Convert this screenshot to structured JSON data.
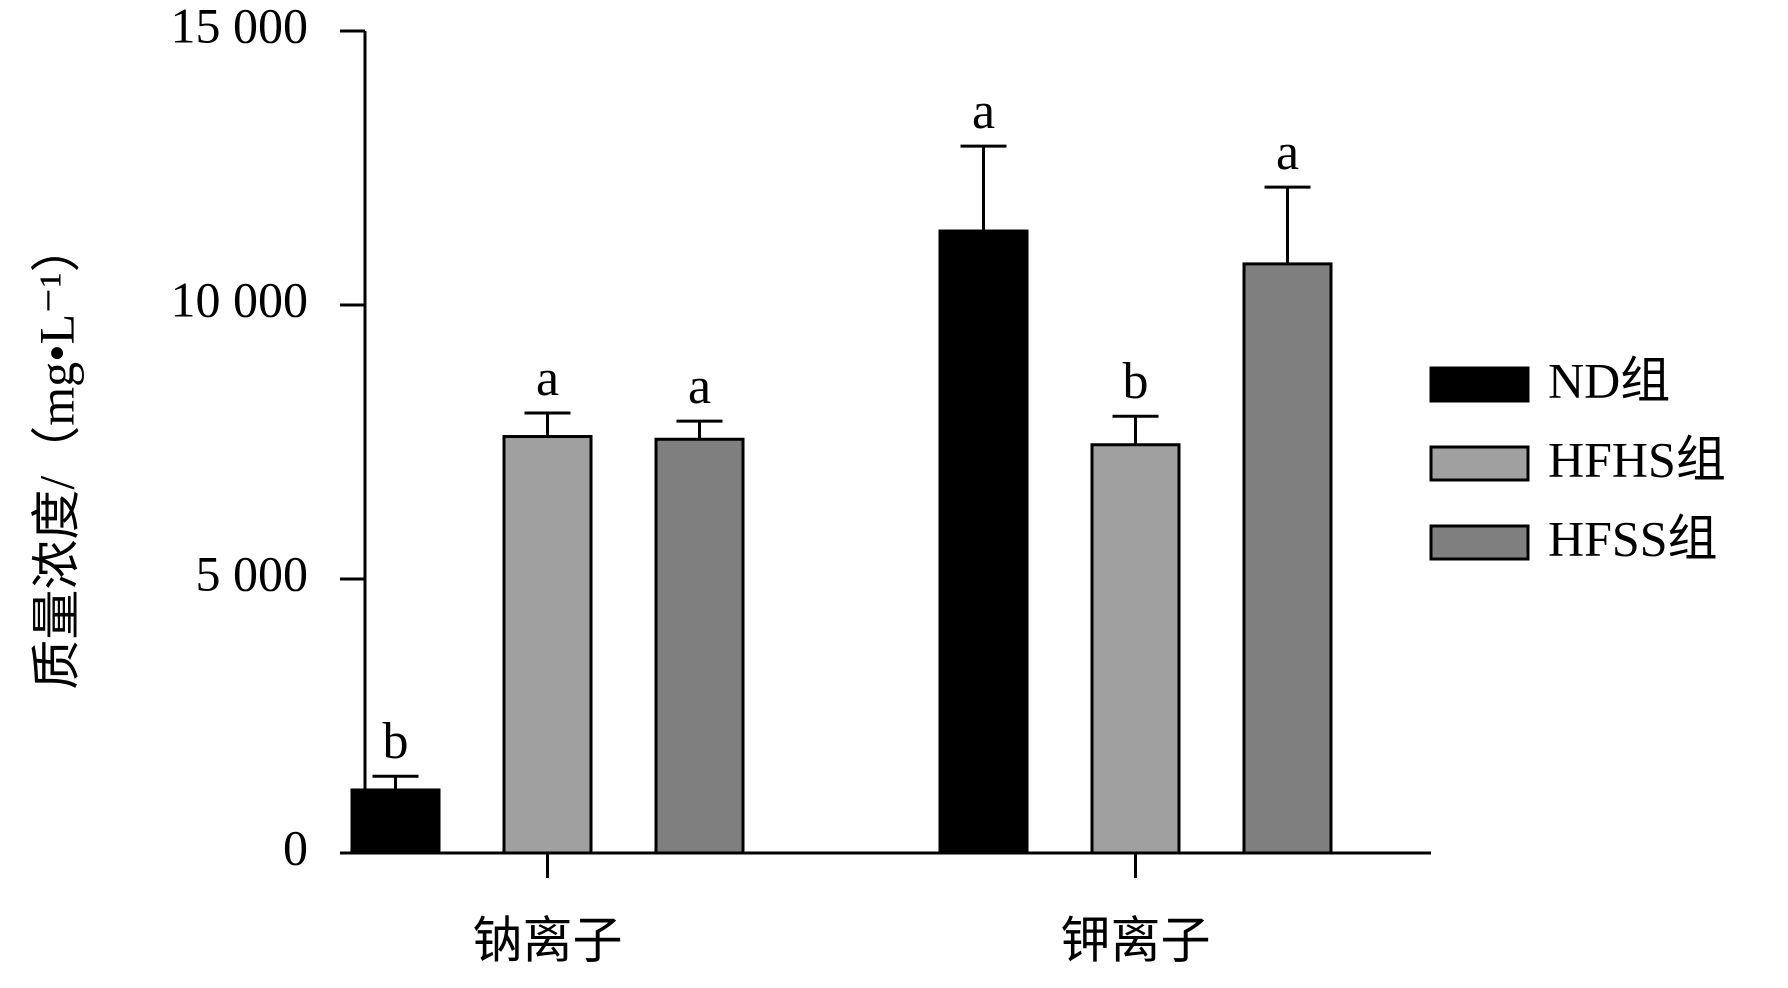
{
  "chart_data": {
    "type": "bar",
    "ylabel": "质量浓度/（mg•L⁻¹）",
    "categories": [
      "钠离子",
      "钾离子"
    ],
    "series": [
      {
        "name": "ND组",
        "color": "#000000",
        "values": [
          1150,
          11350
        ],
        "errors": [
          250,
          1550
        ],
        "significance": [
          "b",
          "a"
        ]
      },
      {
        "name": "HFHS组",
        "color": "#a0a0a0",
        "values": [
          7600,
          7450
        ],
        "errors": [
          430,
          520
        ],
        "significance": [
          "a",
          "b"
        ]
      },
      {
        "name": "HFSS组",
        "color": "#7f7f7f",
        "values": [
          7550,
          10750
        ],
        "errors": [
          330,
          1400
        ],
        "significance": [
          "a",
          "a"
        ]
      }
    ],
    "ylim": [
      0,
      15000
    ],
    "yticks": [
      0,
      {
        "value": 5000,
        "label": "5 000"
      },
      {
        "value": 10000,
        "label": "10 000"
      },
      {
        "value": 15000,
        "label": "15 000"
      }
    ],
    "legend": "right"
  }
}
